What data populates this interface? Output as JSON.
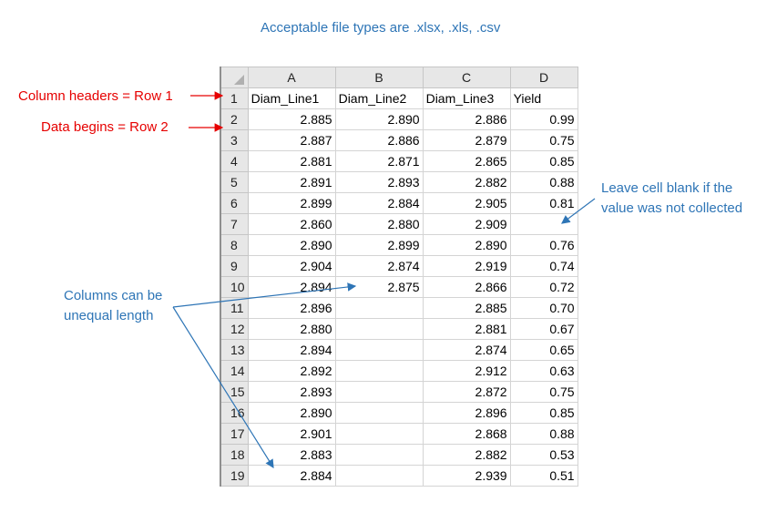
{
  "notes": {
    "title": "Acceptable file types are .xlsx, .xls, .csv",
    "headers_row": "Column headers = Row 1",
    "data_row": "Data begins = Row 2",
    "blank_line1": "Leave cell blank if the",
    "blank_line2": "value was not collected",
    "unequal_line1": "Columns can be",
    "unequal_line2": "unequal length"
  },
  "colors": {
    "red": "#e60000",
    "blue": "#2e75b6",
    "header_bg": "#e7e7e7"
  },
  "spreadsheet": {
    "column_letters": [
      "A",
      "B",
      "C",
      "D"
    ],
    "header_cells": [
      "Diam_Line1",
      "Diam_Line2",
      "Diam_Line3",
      "Yield"
    ],
    "rows": [
      {
        "num": "2",
        "cells": [
          "2.885",
          "2.890",
          "2.886",
          "0.99"
        ]
      },
      {
        "num": "3",
        "cells": [
          "2.887",
          "2.886",
          "2.879",
          "0.75"
        ]
      },
      {
        "num": "4",
        "cells": [
          "2.881",
          "2.871",
          "2.865",
          "0.85"
        ]
      },
      {
        "num": "5",
        "cells": [
          "2.891",
          "2.893",
          "2.882",
          "0.88"
        ]
      },
      {
        "num": "6",
        "cells": [
          "2.899",
          "2.884",
          "2.905",
          "0.81"
        ]
      },
      {
        "num": "7",
        "cells": [
          "2.860",
          "2.880",
          "2.909",
          ""
        ]
      },
      {
        "num": "8",
        "cells": [
          "2.890",
          "2.899",
          "2.890",
          "0.76"
        ]
      },
      {
        "num": "9",
        "cells": [
          "2.904",
          "2.874",
          "2.919",
          "0.74"
        ]
      },
      {
        "num": "10",
        "cells": [
          "2.894",
          "2.875",
          "2.866",
          "0.72"
        ]
      },
      {
        "num": "11",
        "cells": [
          "2.896",
          "",
          "2.885",
          "0.70"
        ]
      },
      {
        "num": "12",
        "cells": [
          "2.880",
          "",
          "2.881",
          "0.67"
        ]
      },
      {
        "num": "13",
        "cells": [
          "2.894",
          "",
          "2.874",
          "0.65"
        ]
      },
      {
        "num": "14",
        "cells": [
          "2.892",
          "",
          "2.912",
          "0.63"
        ]
      },
      {
        "num": "15",
        "cells": [
          "2.893",
          "",
          "2.872",
          "0.75"
        ]
      },
      {
        "num": "16",
        "cells": [
          "2.890",
          "",
          "2.896",
          "0.85"
        ]
      },
      {
        "num": "17",
        "cells": [
          "2.901",
          "",
          "2.868",
          "0.88"
        ]
      },
      {
        "num": "18",
        "cells": [
          "2.883",
          "",
          "2.882",
          "0.53"
        ]
      },
      {
        "num": "19",
        "cells": [
          "2.884",
          "",
          "2.939",
          "0.51"
        ]
      }
    ]
  }
}
